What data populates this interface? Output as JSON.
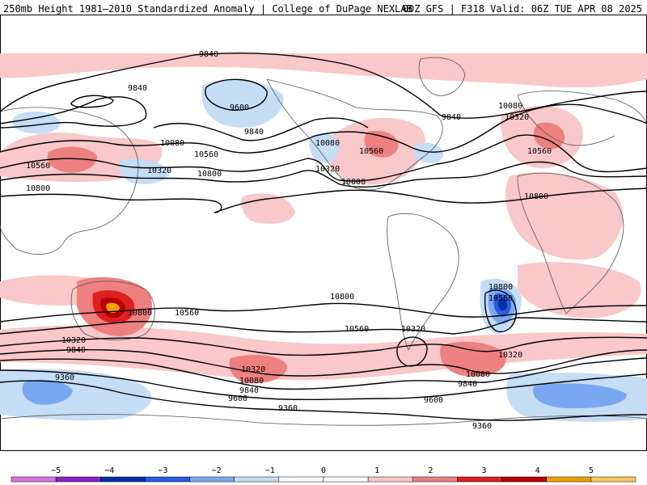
{
  "header": {
    "left": "250mb Height 1981–2010 Standardized Anomaly | College of DuPage NEXLAB",
    "right": "00Z GFS | F318 Valid: 06Z TUE APR 08 2025"
  },
  "colors": {
    "pos1": "#f9c8c8",
    "pos2": "#ee8080",
    "pos3": "#dd2020",
    "pos4": "#b80000",
    "pos5": "#f0a000",
    "neg1": "#c6ddf6",
    "neg2": "#7aa8f0",
    "neg3": "#2a5ae0",
    "neg4": "#0030a0",
    "land": "#555555",
    "contour": "#000000"
  },
  "contour_labels": [
    {
      "id": "c1",
      "text": "9840"
    },
    {
      "id": "c2",
      "text": "9840"
    },
    {
      "id": "c3",
      "text": "9600"
    },
    {
      "id": "c4",
      "text": "9840"
    },
    {
      "id": "c5",
      "text": "9840"
    },
    {
      "id": "c6",
      "text": "10080"
    },
    {
      "id": "c7",
      "text": "10320"
    },
    {
      "id": "c8",
      "text": "10080"
    },
    {
      "id": "c9",
      "text": "10560"
    },
    {
      "id": "c10",
      "text": "10320"
    },
    {
      "id": "c11",
      "text": "10560"
    },
    {
      "id": "c12",
      "text": "10800"
    },
    {
      "id": "c13",
      "text": "10560"
    },
    {
      "id": "c14",
      "text": "10800"
    },
    {
      "id": "c15",
      "text": "10080"
    },
    {
      "id": "c16",
      "text": "10320"
    },
    {
      "id": "c17",
      "text": "10560"
    },
    {
      "id": "c18",
      "text": "10800"
    },
    {
      "id": "c19",
      "text": "10800"
    },
    {
      "id": "c20",
      "text": "10800"
    },
    {
      "id": "c21",
      "text": "10560"
    },
    {
      "id": "c22",
      "text": "10800"
    },
    {
      "id": "c23",
      "text": "10560"
    },
    {
      "id": "c24",
      "text": "10800"
    },
    {
      "id": "c25",
      "text": "10560"
    },
    {
      "id": "c26",
      "text": "10320"
    },
    {
      "id": "c27",
      "text": "10320"
    },
    {
      "id": "c28",
      "text": "9840"
    },
    {
      "id": "c29",
      "text": "10320"
    },
    {
      "id": "c30",
      "text": "10080"
    },
    {
      "id": "c31",
      "text": "9840"
    },
    {
      "id": "c32",
      "text": "10080"
    },
    {
      "id": "c33",
      "text": "9840"
    },
    {
      "id": "c34",
      "text": "9360"
    },
    {
      "id": "c35",
      "text": "9600"
    },
    {
      "id": "c36",
      "text": "9360"
    },
    {
      "id": "c37",
      "text": "9600"
    },
    {
      "id": "c38",
      "text": "9360"
    },
    {
      "id": "c39",
      "text": "10320"
    }
  ],
  "colorbar": {
    "ticks": [
      "−5",
      "−4",
      "−3",
      "−2",
      "−1",
      "0",
      "1",
      "2",
      "3",
      "4",
      "5"
    ],
    "segment_colors": [
      "#e070e0",
      "#8a20c8",
      "#0030a0",
      "#2a5ae0",
      "#7aa8f0",
      "#c6ddf6",
      "#ffffff",
      "#ffffff",
      "#f9c8c8",
      "#ee8080",
      "#dd2020",
      "#b80000",
      "#f0a000",
      "#f8c860"
    ]
  }
}
